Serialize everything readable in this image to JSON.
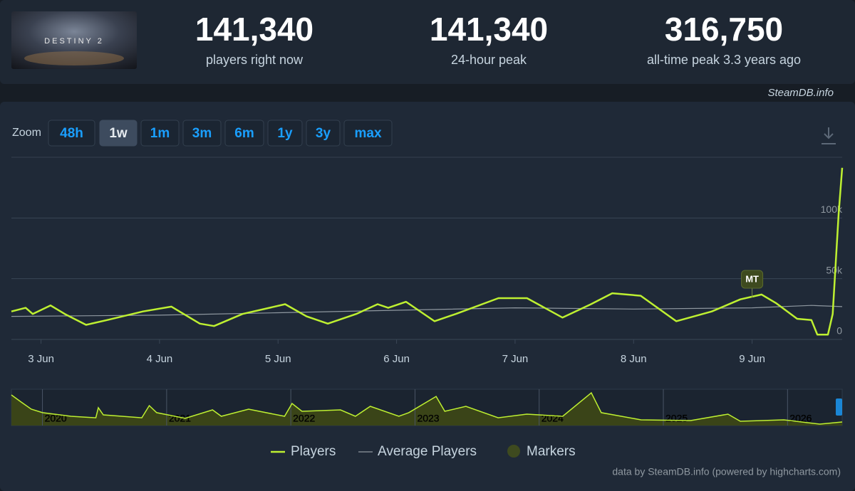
{
  "header": {
    "logo_text": "DESTINY 2",
    "stats": [
      {
        "value": "141,340",
        "label": "players right now"
      },
      {
        "value": "141,340",
        "label": "24-hour peak"
      },
      {
        "value": "316,750",
        "label": "all-time peak 3.3 years ago"
      }
    ]
  },
  "source": "SteamDB.info",
  "zoom": {
    "label": "Zoom",
    "buttons": [
      "48h",
      "1w",
      "1m",
      "3m",
      "6m",
      "1y",
      "3y",
      "max"
    ],
    "selected_index": 1
  },
  "chart_data": {
    "type": "line",
    "series": [
      {
        "name": "Players",
        "color": "#bef031",
        "x": [
          2.75,
          2.87,
          2.93,
          3.08,
          3.2,
          3.38,
          3.56,
          3.86,
          4.1,
          4.34,
          4.46,
          4.7,
          5.06,
          5.24,
          5.42,
          5.66,
          5.84,
          5.93,
          6.08,
          6.32,
          6.5,
          6.86,
          7.1,
          7.4,
          7.64,
          7.82,
          8.06,
          8.36,
          8.66,
          8.9,
          9.08,
          9.2,
          9.38,
          9.5,
          9.55,
          9.64,
          9.68,
          9.73,
          9.76
        ],
        "values": [
          23000,
          26000,
          21000,
          28000,
          21000,
          12000,
          16000,
          23000,
          27000,
          13000,
          11000,
          21000,
          29000,
          19000,
          13000,
          21000,
          29000,
          26000,
          31000,
          15000,
          21000,
          34000,
          34000,
          18000,
          29000,
          38000,
          36000,
          15000,
          23000,
          33000,
          37000,
          30000,
          17000,
          16000,
          4000,
          4000,
          21000,
          103000,
          141340
        ]
      },
      {
        "name": "Average Players",
        "color": "#8f98a0",
        "x": [
          2.75,
          4.0,
          5.0,
          6.0,
          7.0,
          8.0,
          9.0,
          9.5,
          9.76
        ],
        "values": [
          19000,
          20000,
          22000,
          24000,
          26000,
          25000,
          26000,
          28000,
          27000
        ]
      }
    ],
    "markers": {
      "name": "Markers",
      "color": "#3e4a1f",
      "items": [
        {
          "x": 9.0,
          "label": "MT"
        }
      ]
    },
    "xlim": [
      2.75,
      9.76
    ],
    "xticks": [
      {
        "value": 3,
        "label": "3 Jun"
      },
      {
        "value": 4,
        "label": "4 Jun"
      },
      {
        "value": 5,
        "label": "5 Jun"
      },
      {
        "value": 6,
        "label": "6 Jun"
      },
      {
        "value": 7,
        "label": "7 Jun"
      },
      {
        "value": 8,
        "label": "8 Jun"
      },
      {
        "value": 9,
        "label": "9 Jun"
      }
    ],
    "ylim": [
      0,
      150000
    ],
    "yticks": [
      0,
      {
        "value": 50000,
        "label": "50k"
      },
      {
        "value": 100000,
        "label": "100k"
      }
    ],
    "grid": true,
    "navigator": {
      "color": "#bef031",
      "fill": "#3a4418",
      "x": [
        2019.75,
        2019.83,
        2019.91,
        2020.0,
        2020.23,
        2020.43,
        2020.45,
        2020.49,
        2020.8,
        2020.86,
        2020.92,
        2021.15,
        2021.37,
        2021.44,
        2021.66,
        2021.95,
        2022.01,
        2022.09,
        2022.4,
        2022.52,
        2022.64,
        2022.87,
        2022.95,
        2023.17,
        2023.24,
        2023.41,
        2023.67,
        2023.9,
        2024.19,
        2024.42,
        2024.5,
        2024.82,
        2025.22,
        2025.52,
        2025.62,
        2025.97,
        2026.26,
        2026.44
      ],
      "values": [
        295000,
        226000,
        158000,
        124000,
        89000,
        75000,
        172000,
        103000,
        75000,
        192000,
        124000,
        69000,
        151000,
        89000,
        158000,
        89000,
        213000,
        137000,
        151000,
        89000,
        185000,
        89000,
        124000,
        281000,
        137000,
        185000,
        75000,
        110000,
        89000,
        316000,
        124000,
        55000,
        48000,
        110000,
        41000,
        55000,
        14000,
        34000
      ],
      "xlim": [
        2019.75,
        2026.44
      ],
      "ylim": [
        0,
        350000
      ],
      "xticks": [
        2020,
        2021,
        2022,
        2023,
        2024,
        2025,
        2026
      ]
    }
  },
  "credits": "data by SteamDB.info (powered by highcharts.com)"
}
